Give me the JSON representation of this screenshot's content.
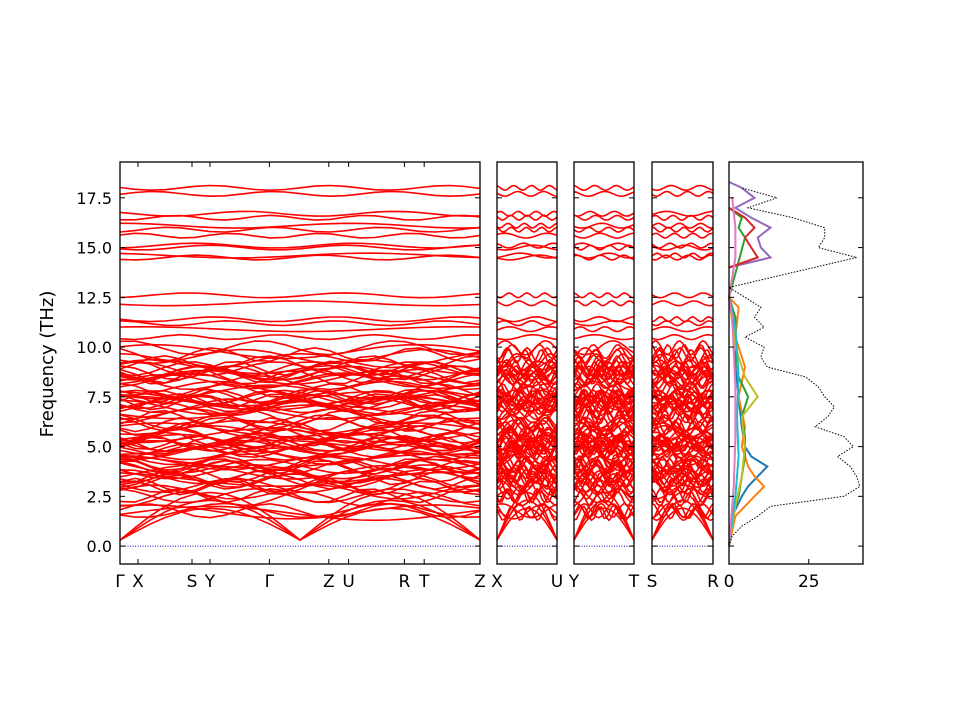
{
  "chart_data": {
    "type": "line",
    "ylabel": "Frequency (THz)",
    "ylim": [
      -0.9,
      19.3
    ],
    "yticks": [
      0.0,
      2.5,
      5.0,
      7.5,
      10.0,
      12.5,
      15.0,
      17.5
    ],
    "ytick_labels": [
      "0.0",
      "2.5",
      "5.0",
      "7.5",
      "10.0",
      "12.5",
      "15.0",
      "17.5"
    ],
    "band_color": "#ff0000",
    "zero_line_color": "#0000cc",
    "panels": [
      {
        "role": "band-structure",
        "path_labels": [
          "Γ",
          "X",
          "S",
          "Y",
          "Γ",
          "Z",
          "U",
          "R",
          "T",
          "Z"
        ],
        "path_positions": [
          0.0,
          0.05,
          0.2,
          0.25,
          0.415,
          0.58,
          0.635,
          0.79,
          0.845,
          1.0
        ]
      },
      {
        "role": "band-structure",
        "path_labels": [
          "X",
          "U"
        ],
        "path_positions": [
          0.0,
          1.0
        ]
      },
      {
        "role": "band-structure",
        "path_labels": [
          "Y",
          "T"
        ],
        "path_positions": [
          0.0,
          1.0
        ]
      },
      {
        "role": "band-structure",
        "path_labels": [
          "S",
          "R"
        ],
        "path_positions": [
          0.0,
          1.0
        ]
      },
      {
        "role": "density-of-states",
        "xlim": [
          0,
          42
        ],
        "xticks": [
          0,
          25
        ],
        "xtick_labels": [
          "0",
          "25"
        ],
        "total_style": "black dotted",
        "total_dos": {
          "freq": [
            0.0,
            0.5,
            1.0,
            1.5,
            2.0,
            2.5,
            3.0,
            3.5,
            4.0,
            4.5,
            5.0,
            5.5,
            6.0,
            6.5,
            7.0,
            7.5,
            8.0,
            8.5,
            9.0,
            9.5,
            10.0,
            10.5,
            11.0,
            11.5,
            12.0,
            12.5,
            13.0,
            14.5,
            15.0,
            15.5,
            16.0,
            16.5,
            17.0,
            17.5,
            18.0
          ],
          "dos": [
            0.0,
            1.0,
            4.0,
            9.0,
            13.0,
            36.0,
            41.0,
            40.0,
            38.0,
            34.0,
            39.0,
            36.0,
            27.0,
            31.0,
            33.0,
            30.0,
            28.0,
            24.0,
            12.0,
            10.0,
            11.0,
            5.0,
            11.0,
            8.0,
            10.0,
            5.0,
            0.0,
            40.0,
            28.0,
            30.0,
            30.0,
            20.0,
            6.0,
            15.0,
            4.0
          ]
        },
        "projected_series": [
          {
            "color": "#1f77b4",
            "freq": [
              0.0,
              1.5,
              2.5,
              3.0,
              3.5,
              4.0,
              4.5,
              5.0,
              6.0,
              7.5,
              9.0,
              10.5,
              12.0,
              12.5
            ],
            "dos": [
              0.0,
              1.0,
              4.0,
              6.0,
              9.0,
              12.0,
              7.0,
              5.0,
              4.0,
              3.0,
              2.0,
              1.5,
              1.0,
              0.0
            ]
          },
          {
            "color": "#ff7f0e",
            "freq": [
              0.0,
              1.5,
              2.5,
              3.0,
              3.5,
              4.0,
              4.5,
              5.0,
              6.0,
              7.5,
              9.0,
              10.5,
              12.0,
              12.5
            ],
            "dos": [
              0.0,
              2.0,
              8.0,
              11.0,
              8.0,
              6.0,
              5.0,
              4.0,
              5.0,
              3.0,
              5.0,
              2.0,
              3.0,
              0.0
            ]
          },
          {
            "color": "#2ca02c",
            "freq": [
              0.0,
              1.5,
              2.5,
              3.5,
              4.5,
              5.5,
              6.5,
              7.5,
              8.5,
              10.0,
              11.5,
              12.5,
              15.5,
              16.0,
              16.5,
              17.0
            ],
            "dos": [
              0.0,
              1.0,
              3.0,
              4.0,
              5.0,
              5.0,
              4.0,
              6.0,
              3.0,
              2.0,
              2.0,
              0.0,
              5.0,
              3.0,
              4.0,
              0.0
            ]
          },
          {
            "color": "#bcbd22",
            "freq": [
              0.0,
              2.0,
              3.5,
              5.0,
              6.5,
              7.5,
              8.5,
              10.0,
              12.5
            ],
            "dos": [
              0.0,
              2.0,
              4.0,
              5.0,
              4.0,
              9.0,
              5.0,
              2.0,
              0.0
            ]
          },
          {
            "color": "#9467bd",
            "freq": [
              14.0,
              14.5,
              15.0,
              15.5,
              16.0,
              16.5,
              17.0,
              17.5,
              18.0,
              18.3
            ],
            "dos": [
              0.0,
              13.0,
              10.0,
              9.0,
              13.0,
              7.0,
              2.0,
              8.0,
              4.0,
              0.0
            ]
          },
          {
            "color": "#d62728",
            "freq": [
              14.0,
              14.5,
              15.0,
              15.5,
              16.0,
              16.5,
              17.0
            ],
            "dos": [
              0.0,
              9.0,
              7.0,
              5.0,
              8.0,
              5.0,
              0.0
            ]
          },
          {
            "color": "#17becf",
            "freq": [
              0.0,
              2.5,
              4.5,
              6.5,
              8.5,
              11.0,
              12.5
            ],
            "dos": [
              0.0,
              2.0,
              3.0,
              2.5,
              3.0,
              2.0,
              0.0
            ]
          },
          {
            "color": "#e377c2",
            "freq": [
              0.0,
              3.0,
              5.5,
              8.0,
              11.5,
              12.5,
              14.5,
              16.0,
              17.5
            ],
            "dos": [
              0.0,
              1.5,
              2.0,
              2.0,
              1.0,
              0.0,
              2.0,
              2.0,
              1.0
            ]
          }
        ]
      }
    ]
  }
}
